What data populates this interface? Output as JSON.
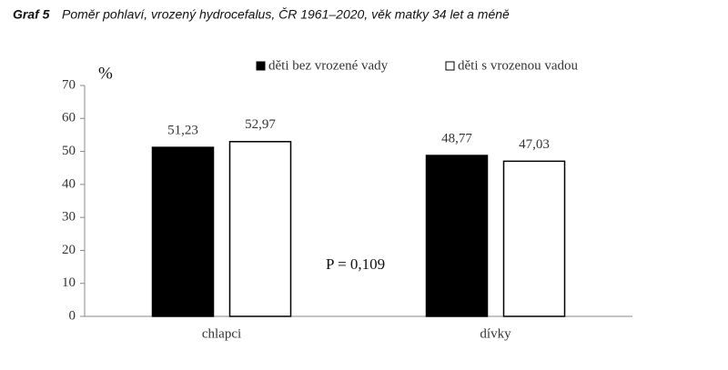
{
  "chart_data": {
    "type": "bar",
    "figure_label": "Graf 5",
    "title": "Poměr pohlaví, vrozený hydrocefalus, ČR 1961–2020, věk matky 34 let a méně",
    "y_label": "%",
    "categories": [
      "chlapci",
      "dívky"
    ],
    "series": [
      {
        "name": "děti bez vrozené vady",
        "color": "#000000",
        "values": [
          51.23,
          48.77
        ],
        "value_labels": [
          "51,23",
          "48,77"
        ]
      },
      {
        "name": "děti s vrozenou vadou",
        "color": "#ffffff",
        "values": [
          52.97,
          47.03
        ],
        "value_labels": [
          "52,97",
          "47,03"
        ]
      }
    ],
    "ylim": [
      0,
      70
    ],
    "yticks": [
      0,
      10,
      20,
      30,
      40,
      50,
      60,
      70
    ],
    "annotation": "P = 0,109",
    "legend": "top"
  }
}
